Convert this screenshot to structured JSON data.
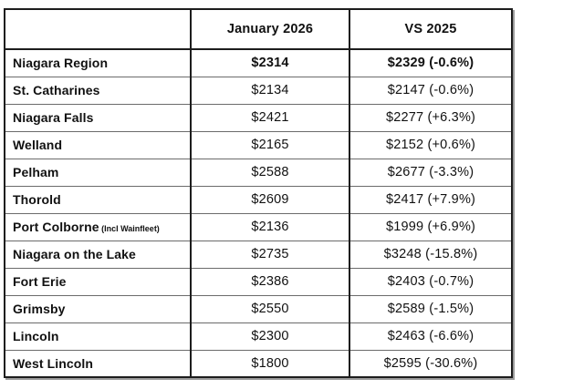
{
  "chart_data": {
    "type": "table",
    "title": "",
    "columns": [
      "",
      "January 2026",
      "VS 2025"
    ],
    "rows": [
      {
        "region": "Niagara Region",
        "note": "",
        "jan_2026": 2314,
        "vs_2025": 2329,
        "pct_change": -0.6,
        "jan_label": "$2314",
        "vs_label": "$2329 (-0.6%)",
        "emphasis": true
      },
      {
        "region": "St. Catharines",
        "note": "",
        "jan_2026": 2134,
        "vs_2025": 2147,
        "pct_change": -0.6,
        "jan_label": "$2134",
        "vs_label": "$2147 (-0.6%)",
        "emphasis": false
      },
      {
        "region": "Niagara Falls",
        "note": "",
        "jan_2026": 2421,
        "vs_2025": 2277,
        "pct_change": 6.3,
        "jan_label": "$2421",
        "vs_label": "$2277 (+6.3%)",
        "emphasis": false
      },
      {
        "region": "Welland",
        "note": "",
        "jan_2026": 2165,
        "vs_2025": 2152,
        "pct_change": 0.6,
        "jan_label": "$2165",
        "vs_label": "$2152 (+0.6%)",
        "emphasis": false
      },
      {
        "region": "Pelham",
        "note": "",
        "jan_2026": 2588,
        "vs_2025": 2677,
        "pct_change": -3.3,
        "jan_label": "$2588",
        "vs_label": "$2677 (-3.3%)",
        "emphasis": false
      },
      {
        "region": "Thorold",
        "note": "",
        "jan_2026": 2609,
        "vs_2025": 2417,
        "pct_change": 7.9,
        "jan_label": "$2609",
        "vs_label": "$2417 (+7.9%)",
        "emphasis": false
      },
      {
        "region": "Port Colborne",
        "note": "(Incl Wainfleet)",
        "jan_2026": 2136,
        "vs_2025": 1999,
        "pct_change": 6.9,
        "jan_label": "$2136",
        "vs_label": "$1999 (+6.9%)",
        "emphasis": false
      },
      {
        "region": "Niagara on the Lake",
        "note": "",
        "jan_2026": 2735,
        "vs_2025": 3248,
        "pct_change": -15.8,
        "jan_label": "$2735",
        "vs_label": "$3248 (-15.8%)",
        "emphasis": false
      },
      {
        "region": "Fort Erie",
        "note": "",
        "jan_2026": 2386,
        "vs_2025": 2403,
        "pct_change": -0.7,
        "jan_label": "$2386",
        "vs_label": "$2403 (-0.7%)",
        "emphasis": false
      },
      {
        "region": "Grimsby",
        "note": "",
        "jan_2026": 2550,
        "vs_2025": 2589,
        "pct_change": -1.5,
        "jan_label": "$2550",
        "vs_label": "$2589 (-1.5%)",
        "emphasis": false
      },
      {
        "region": "Lincoln",
        "note": "",
        "jan_2026": 2300,
        "vs_2025": 2463,
        "pct_change": -6.6,
        "jan_label": "$2300",
        "vs_label": "$2463 (-6.6%)",
        "emphasis": false
      },
      {
        "region": "West Lincoln",
        "note": "",
        "jan_2026": 1800,
        "vs_2025": 2595,
        "pct_change": -30.6,
        "jan_label": "$1800",
        "vs_label": "$2595 (-30.6%)",
        "emphasis": false
      }
    ],
    "colors": {
      "border_dark": "#1d1d1d",
      "border_light": "#6b6b6b",
      "text": "#111111",
      "background": "#ffffff"
    }
  },
  "header": {
    "region_label": "",
    "jan_label": "January 2026",
    "vs_label": "VS 2025"
  }
}
